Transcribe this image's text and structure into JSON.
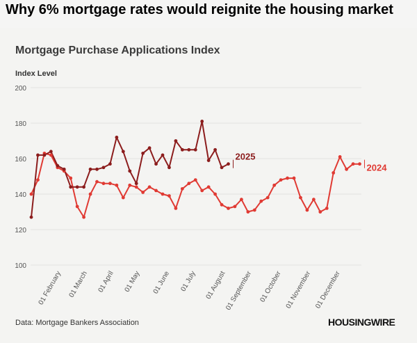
{
  "headline": "Why 6% mortgage rates would reignite the housing market",
  "chart_data": {
    "type": "line",
    "title": "Mortgage Purchase Applications Index",
    "ylabel": "Index Level",
    "xlabel": "",
    "ylim": [
      100,
      200
    ],
    "yticks": [
      100,
      120,
      140,
      160,
      180,
      200
    ],
    "x_tick_labels": [
      "01 February",
      "01 March",
      "01 April",
      "01 May",
      "01 June",
      "01 July",
      "01 August",
      "01 September",
      "01 October",
      "01 November",
      "01 December"
    ],
    "x_tick_weeks": [
      4.5,
      8.5,
      12.5,
      16.5,
      21,
      25,
      29.5,
      33.5,
      38,
      42.5,
      47
    ],
    "series": [
      {
        "name": "2024",
        "color": "#e03a33",
        "label_color": "#e03a33",
        "values": [
          140,
          148,
          163,
          162,
          155,
          153,
          149,
          133,
          127,
          140,
          147,
          146,
          146,
          145,
          138,
          145,
          144,
          141,
          144,
          142,
          140,
          139,
          132,
          143,
          146,
          148,
          142,
          144,
          140,
          134,
          132,
          133,
          137,
          130,
          131,
          136,
          138,
          145,
          148,
          149,
          149,
          138,
          131,
          137,
          130,
          132,
          152,
          161,
          154,
          157,
          157
        ]
      },
      {
        "name": "2025",
        "color": "#8c1d1d",
        "label_color": "#8c1d1d",
        "values": [
          127,
          162,
          162,
          164,
          156,
          154,
          144,
          144,
          144,
          154,
          154,
          155,
          157,
          172,
          164,
          153,
          146,
          163,
          166,
          157,
          162,
          155,
          170,
          165,
          165,
          165,
          181,
          159,
          165,
          155,
          157
        ]
      }
    ]
  },
  "footer": {
    "source": "Data: Mortgage Bankers Association",
    "logo": "HOUSINGWIRE"
  }
}
